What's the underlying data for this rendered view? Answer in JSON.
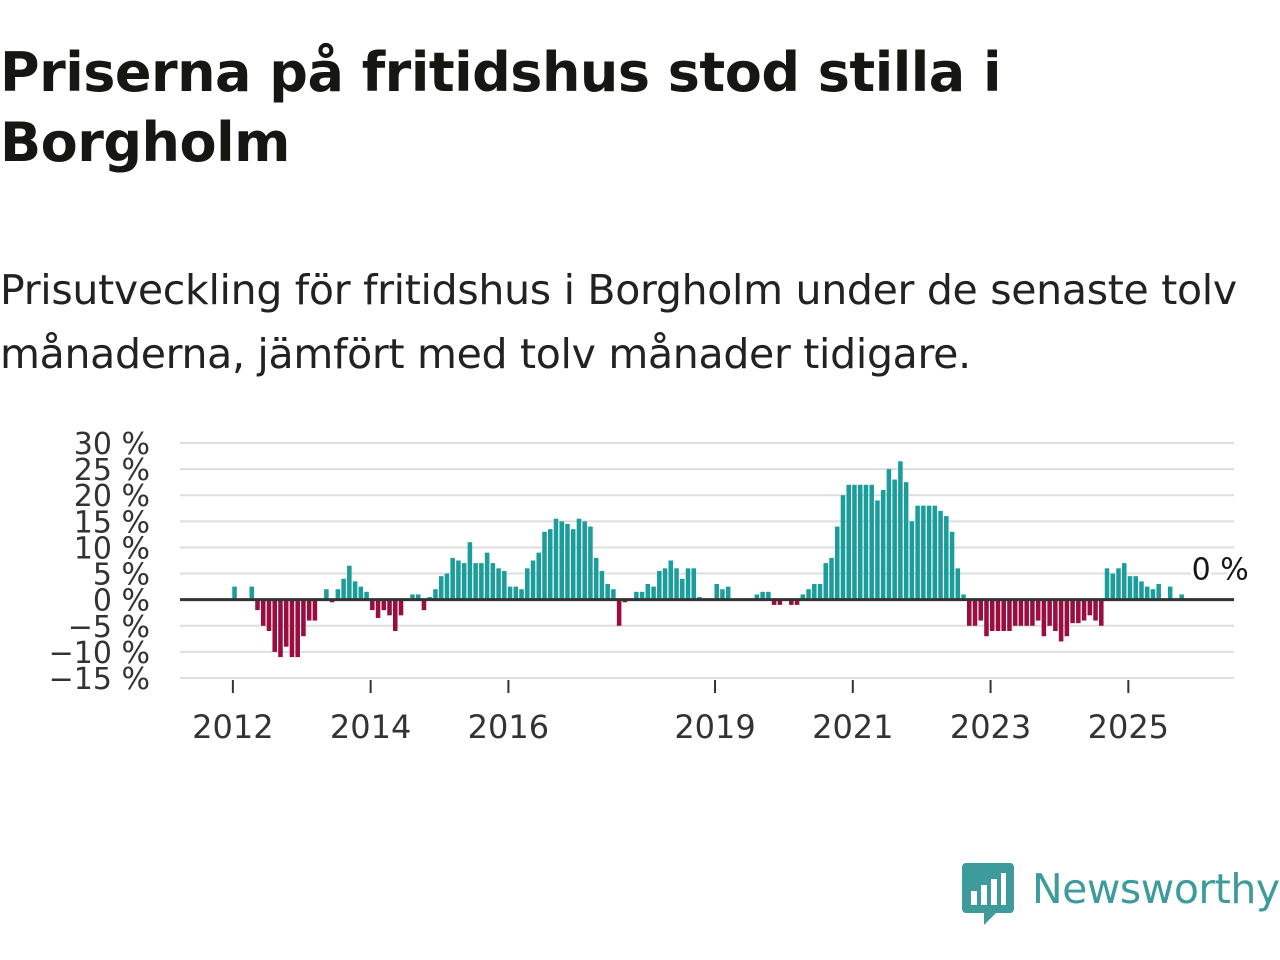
{
  "header": {
    "title": "Priserna på fritidshus stod stilla i Borgholm",
    "subtitle": "Prisutveckling för fritidshus i Borgholm under de senaste tolv månaderna, jämfört med tolv månader tidigare."
  },
  "chart_data": {
    "type": "bar",
    "title": "Priserna på fritidshus stod stilla i Borgholm",
    "subtitle": "Prisutveckling för fritidshus i Borgholm under de senaste tolv månaderna, jämfört med tolv månader tidigare.",
    "xlabel": "",
    "ylabel": "",
    "ylim": [
      -15,
      30
    ],
    "yticks": [
      30,
      25,
      20,
      15,
      10,
      5,
      0,
      -5,
      -10,
      -15
    ],
    "ytick_labels": [
      "30 %",
      "25 %",
      "20 %",
      "15 %",
      "10 %",
      "5 %",
      "0 %",
      "−5 %",
      "−10 %",
      "−15 %"
    ],
    "xticks": [
      {
        "year": 2012,
        "label": "2012"
      },
      {
        "year": 2014,
        "label": "2014"
      },
      {
        "year": 2016,
        "label": "2016"
      },
      {
        "year": 2019,
        "label": "2019"
      },
      {
        "year": 2021,
        "label": "2021"
      },
      {
        "year": 2023,
        "label": "2023"
      },
      {
        "year": 2025,
        "label": "2025"
      }
    ],
    "start": "2011-01",
    "frequency": "monthly",
    "grid": true,
    "positive_color": "#1b9e9b",
    "negative_color": "#9b0c3f",
    "zero_line_color": "#333333",
    "values": [
      0,
      0,
      0,
      0,
      0,
      0,
      0,
      0,
      0,
      0,
      0,
      0,
      2.5,
      0,
      0,
      2.5,
      -2,
      -5,
      -6,
      -10,
      -11,
      -9,
      -11,
      -11,
      -7,
      -4,
      -4,
      0,
      2,
      -0.5,
      2,
      4,
      6.5,
      3.5,
      2.5,
      1.5,
      -2,
      -3.5,
      -2,
      -3,
      -6,
      -3,
      0,
      1,
      1,
      -2,
      0.5,
      2,
      4.5,
      5,
      8,
      7.5,
      7,
      11,
      7,
      7,
      9,
      7,
      6,
      5.5,
      2.5,
      2.5,
      2,
      6,
      7.5,
      9,
      13,
      13.5,
      15.5,
      15,
      14.5,
      13.5,
      15.5,
      15,
      14,
      8,
      5.5,
      3,
      2,
      -5,
      -0.5,
      0,
      1.5,
      1.5,
      3,
      2.5,
      5.5,
      6,
      7.5,
      6,
      4,
      6,
      6,
      0.5,
      0,
      0,
      3,
      2,
      2.5,
      0,
      0,
      0,
      0,
      1,
      1.5,
      1.5,
      -1,
      -1,
      0,
      -1,
      -1,
      1,
      2,
      3,
      3,
      7,
      8,
      14,
      20,
      22,
      22,
      22,
      22,
      22,
      19,
      21,
      25,
      23,
      26.5,
      22.5,
      15,
      18,
      18,
      18,
      18,
      17,
      16,
      13,
      6,
      1,
      -5,
      -5,
      -4,
      -7,
      -6,
      -6,
      -6,
      -6,
      -5,
      -5,
      -5,
      -5,
      -4,
      -7,
      -5,
      -6,
      -8,
      -7,
      -4.5,
      -4.5,
      -4,
      -3,
      -4,
      -5,
      6,
      5,
      6,
      7,
      4.5,
      4.5,
      3.5,
      2.5,
      2,
      3,
      0,
      2.5,
      0,
      1,
      0
    ],
    "annotation": {
      "label": "0 %"
    }
  },
  "branding": {
    "logo_name": "Newsworthy",
    "logo_color": "#3e9b9c"
  }
}
